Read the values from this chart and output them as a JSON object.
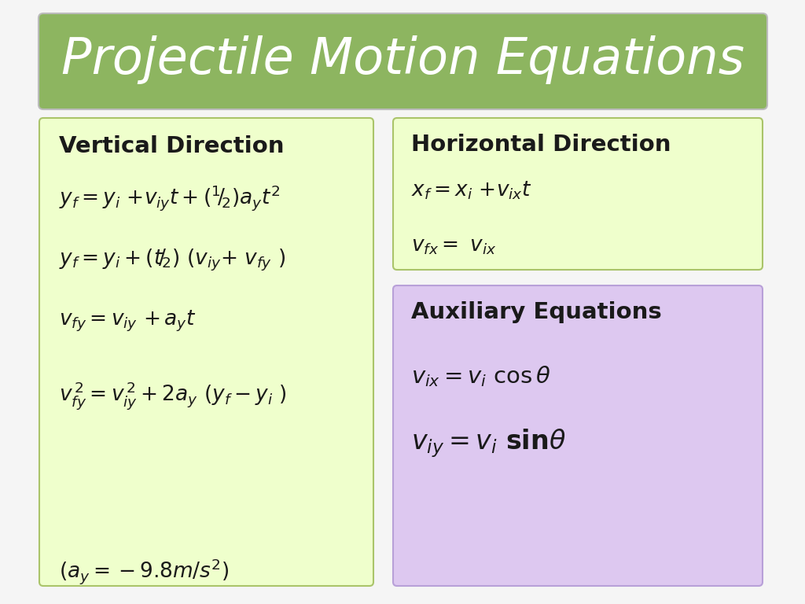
{
  "title": "Projectile Motion Equations",
  "title_bg": "#8db560",
  "title_color": "#ffffff",
  "bg_color": "#f5f5f5",
  "box_light_green": "#efffcc",
  "box_border_green": "#aac46a",
  "box_purple": "#ddc8f0",
  "box_border_purple": "#b8a0d8",
  "text_color": "#1a1a1a",
  "vertical_title": "Vertical Direction",
  "horizontal_title": "Horizontal Direction",
  "aux_title": "Auxiliary Equations"
}
